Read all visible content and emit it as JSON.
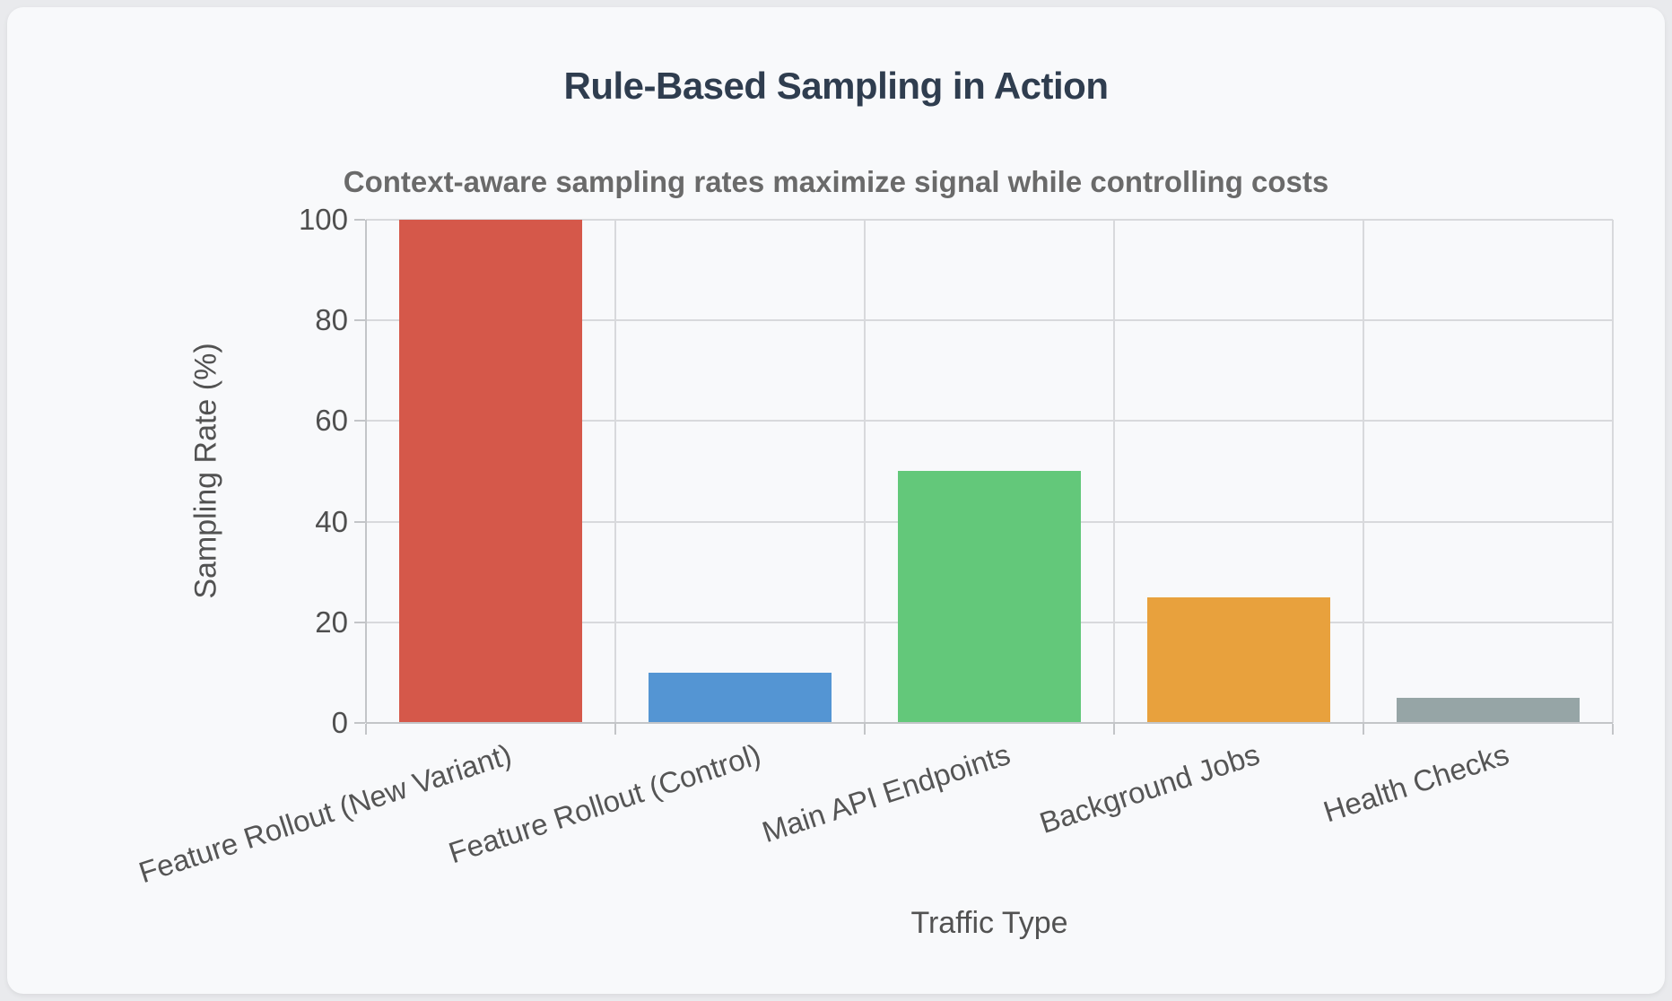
{
  "chart_data": {
    "type": "bar",
    "title": "Rule-Based Sampling in Action",
    "subtitle": "Context-aware sampling rates maximize signal while controlling costs",
    "xlabel": "Traffic Type",
    "ylabel": "Sampling Rate (%)",
    "categories": [
      "Feature Rollout (New Variant)",
      "Feature Rollout (Control)",
      "Main API Endpoints",
      "Background Jobs",
      "Health Checks"
    ],
    "values": [
      100,
      10,
      50,
      25,
      5
    ],
    "bar_colors": [
      "#d5584a",
      "#5495d3",
      "#63c87a",
      "#e8a13d",
      "#96a5a6"
    ],
    "ylim": [
      0,
      100
    ],
    "yticks": [
      0,
      20,
      40,
      60,
      80,
      100
    ],
    "grid": true,
    "legend": "none",
    "x_tick_rotation_deg": -18,
    "colors": {
      "title": "#2f3d4f",
      "subtitle": "#6a6a6a",
      "tick_labels": "#4f4f4f",
      "card_background": "#f8f9fb",
      "page_background": "#e9eaed"
    }
  }
}
